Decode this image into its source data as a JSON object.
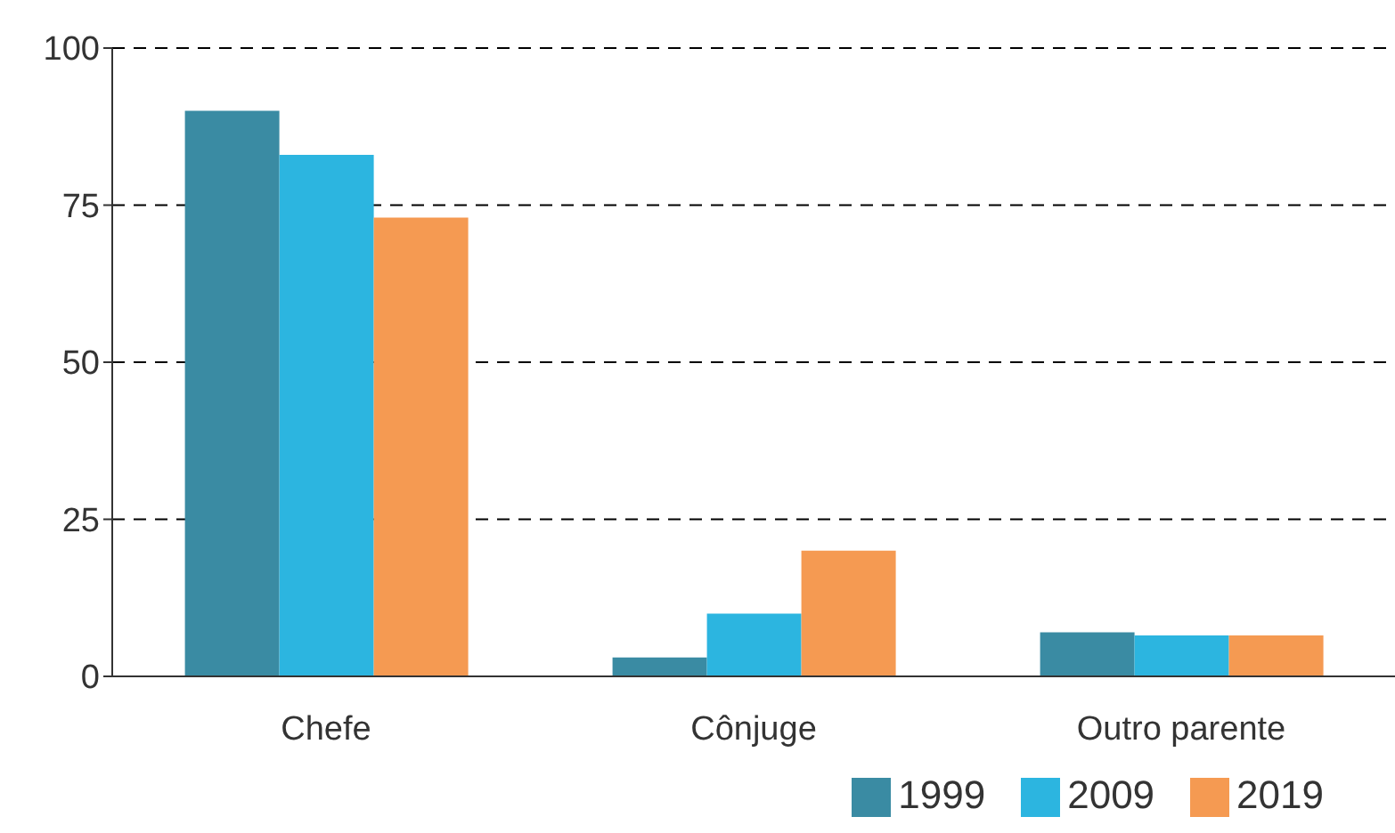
{
  "chart_data": {
    "type": "bar",
    "categories": [
      "Chefe",
      "Cônjuge",
      "Outro parente"
    ],
    "series": [
      {
        "name": "1999",
        "color": "#3a8ba3",
        "values": [
          90,
          3,
          7
        ]
      },
      {
        "name": "2009",
        "color": "#2cb5e0",
        "values": [
          83,
          10,
          6.5
        ]
      },
      {
        "name": "2019",
        "color": "#f59a52",
        "values": [
          73,
          20,
          6.5
        ]
      }
    ],
    "ylim": [
      0,
      100
    ],
    "yticks": [
      0,
      25,
      50,
      75,
      100
    ],
    "grid": "y",
    "legend": "bottom right"
  }
}
